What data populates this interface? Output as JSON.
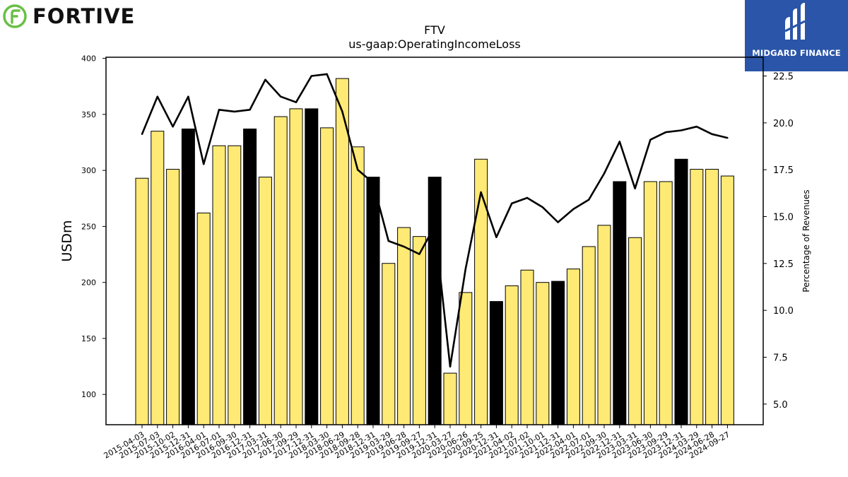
{
  "branding": {
    "company_logo_text": "FORTIVE",
    "publisher_logo_text": "MIDGARD FINANCE",
    "accent_green": "#6abf45",
    "publisher_bg": "#2a55a8"
  },
  "chart_data": {
    "type": "bar",
    "title": "FTV",
    "subtitle": "us-gaap:OperatingIncomeLoss",
    "ylabel": "USDm",
    "y2label": "Percentage of Revenues",
    "ylim": [
      73,
      401
    ],
    "y2lim": [
      3.9,
      23.5
    ],
    "yticks": [
      100,
      150,
      200,
      250,
      300,
      350,
      400
    ],
    "y2ticks": [
      "5.0",
      "7.5",
      "10.0",
      "12.5",
      "15.0",
      "17.5",
      "20.0",
      "22.5"
    ],
    "colors": {
      "quarter_bar": "#ffea75",
      "year_end_bar": "#000000",
      "line": "#000000"
    },
    "categories": [
      "2015-04-03",
      "2015-07-03",
      "2015-10-02",
      "2015-12-31",
      "2016-04-01",
      "2016-07-01",
      "2016-09-30",
      "2016-12-31",
      "2017-03-31",
      "2017-06-30",
      "2017-09-29",
      "2017-12-31",
      "2018-03-30",
      "2018-06-29",
      "2018-09-28",
      "2018-12-31",
      "2019-03-29",
      "2019-06-28",
      "2019-09-27",
      "2019-12-31",
      "2020-03-27",
      "2020-06-26",
      "2020-09-25",
      "2020-12-31",
      "2021-04-02",
      "2021-07-02",
      "2021-10-01",
      "2021-12-31",
      "2022-04-01",
      "2022-07-01",
      "2022-09-30",
      "2022-12-31",
      "2023-03-31",
      "2023-06-30",
      "2023-09-29",
      "2023-12-31",
      "2024-03-29",
      "2024-06-28",
      "2024-09-27"
    ],
    "series": [
      {
        "values": [
          293,
          335,
          301,
          337,
          262,
          322,
          322,
          337,
          294,
          348,
          355,
          355,
          338,
          382,
          321,
          294,
          217,
          249,
          241,
          294,
          119,
          191,
          310,
          183,
          197,
          211,
          200,
          201,
          212,
          232,
          251,
          290,
          240,
          290,
          290,
          310,
          301,
          301,
          295
        ],
        "year_end": [
          false,
          false,
          false,
          true,
          false,
          false,
          false,
          true,
          false,
          false,
          false,
          true,
          false,
          false,
          false,
          true,
          false,
          false,
          false,
          true,
          false,
          false,
          false,
          true,
          false,
          false,
          false,
          true,
          false,
          false,
          false,
          true,
          false,
          false,
          false,
          true,
          false,
          false,
          false
        ]
      },
      {
        "axis": "right",
        "values": [
          19.4,
          21.4,
          19.8,
          21.4,
          17.8,
          20.7,
          20.6,
          20.7,
          22.3,
          21.4,
          21.1,
          22.5,
          22.6,
          20.6,
          17.5,
          16.8,
          13.7,
          13.4,
          13.0,
          14.5,
          7.0,
          12.2,
          16.3,
          13.9,
          15.7,
          16.0,
          15.5,
          14.7,
          15.4,
          15.9,
          17.3,
          19.0,
          16.5,
          19.1,
          19.5,
          19.6,
          19.8,
          19.4,
          19.2
        ]
      }
    ]
  }
}
